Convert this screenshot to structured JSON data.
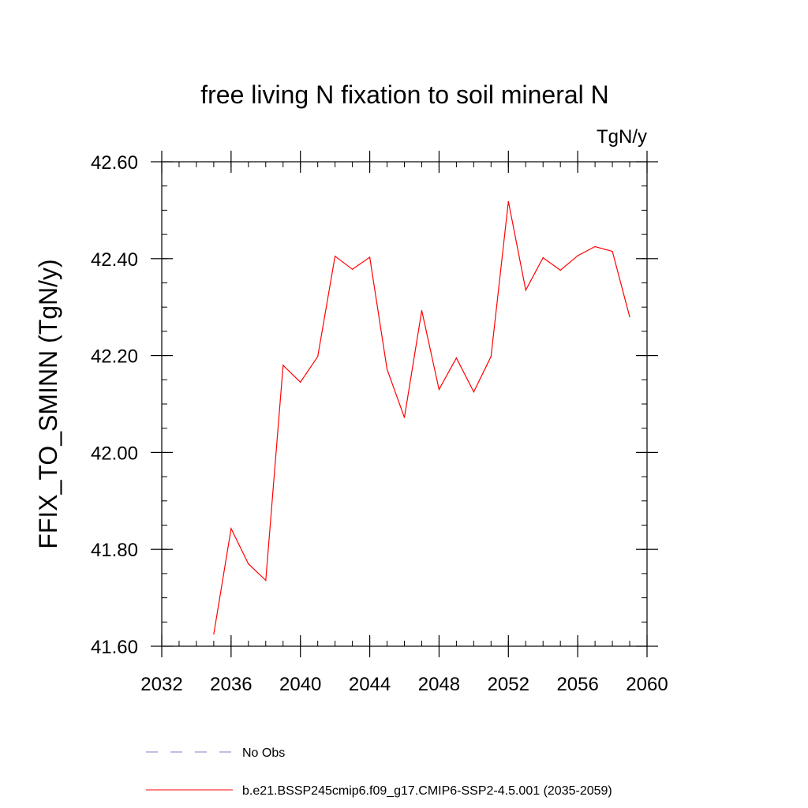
{
  "chart_data": {
    "type": "line",
    "title": "free living N fixation to soil mineral N",
    "units": "TgN/y",
    "ylabel": "FFIX_TO_SMINN  (TgN/y)",
    "xlabel": "",
    "xlim": [
      2032,
      2060
    ],
    "ylim": [
      41.6,
      42.6
    ],
    "xticks": [
      2032,
      2036,
      2040,
      2044,
      2048,
      2052,
      2056,
      2060
    ],
    "yticks": [
      41.6,
      41.8,
      42.0,
      42.2,
      42.4,
      42.6
    ],
    "x_minor_step": 1,
    "y_minor_step": 0.05,
    "grid": false,
    "legend_position": "bottom",
    "series": [
      {
        "name": "b.e21.BSSP245cmip6.f09_g17.CMIP6-SSP2-4.5.001 (2035-2059)",
        "color": "#ff0000",
        "style": "solid",
        "x": [
          2035,
          2036,
          2037,
          2038,
          2039,
          2040,
          2041,
          2042,
          2043,
          2044,
          2045,
          2046,
          2047,
          2048,
          2049,
          2050,
          2051,
          2052,
          2053,
          2054,
          2055,
          2056,
          2057,
          2058,
          2059
        ],
        "y": [
          41.625,
          41.843,
          41.77,
          41.736,
          42.18,
          42.145,
          42.198,
          42.405,
          42.378,
          42.403,
          42.172,
          42.072,
          42.293,
          42.13,
          42.195,
          42.125,
          42.198,
          42.518,
          42.335,
          42.402,
          42.376,
          42.406,
          42.425,
          42.415,
          42.28
        ]
      }
    ],
    "legend": [
      {
        "label": "No Obs",
        "color": "#8080c0",
        "style": "dashed"
      },
      {
        "label": "b.e21.BSSP245cmip6.f09_g17.CMIP6-SSP2-4.5.001 (2035-2059)",
        "color": "#ff0000",
        "style": "solid"
      }
    ]
  }
}
